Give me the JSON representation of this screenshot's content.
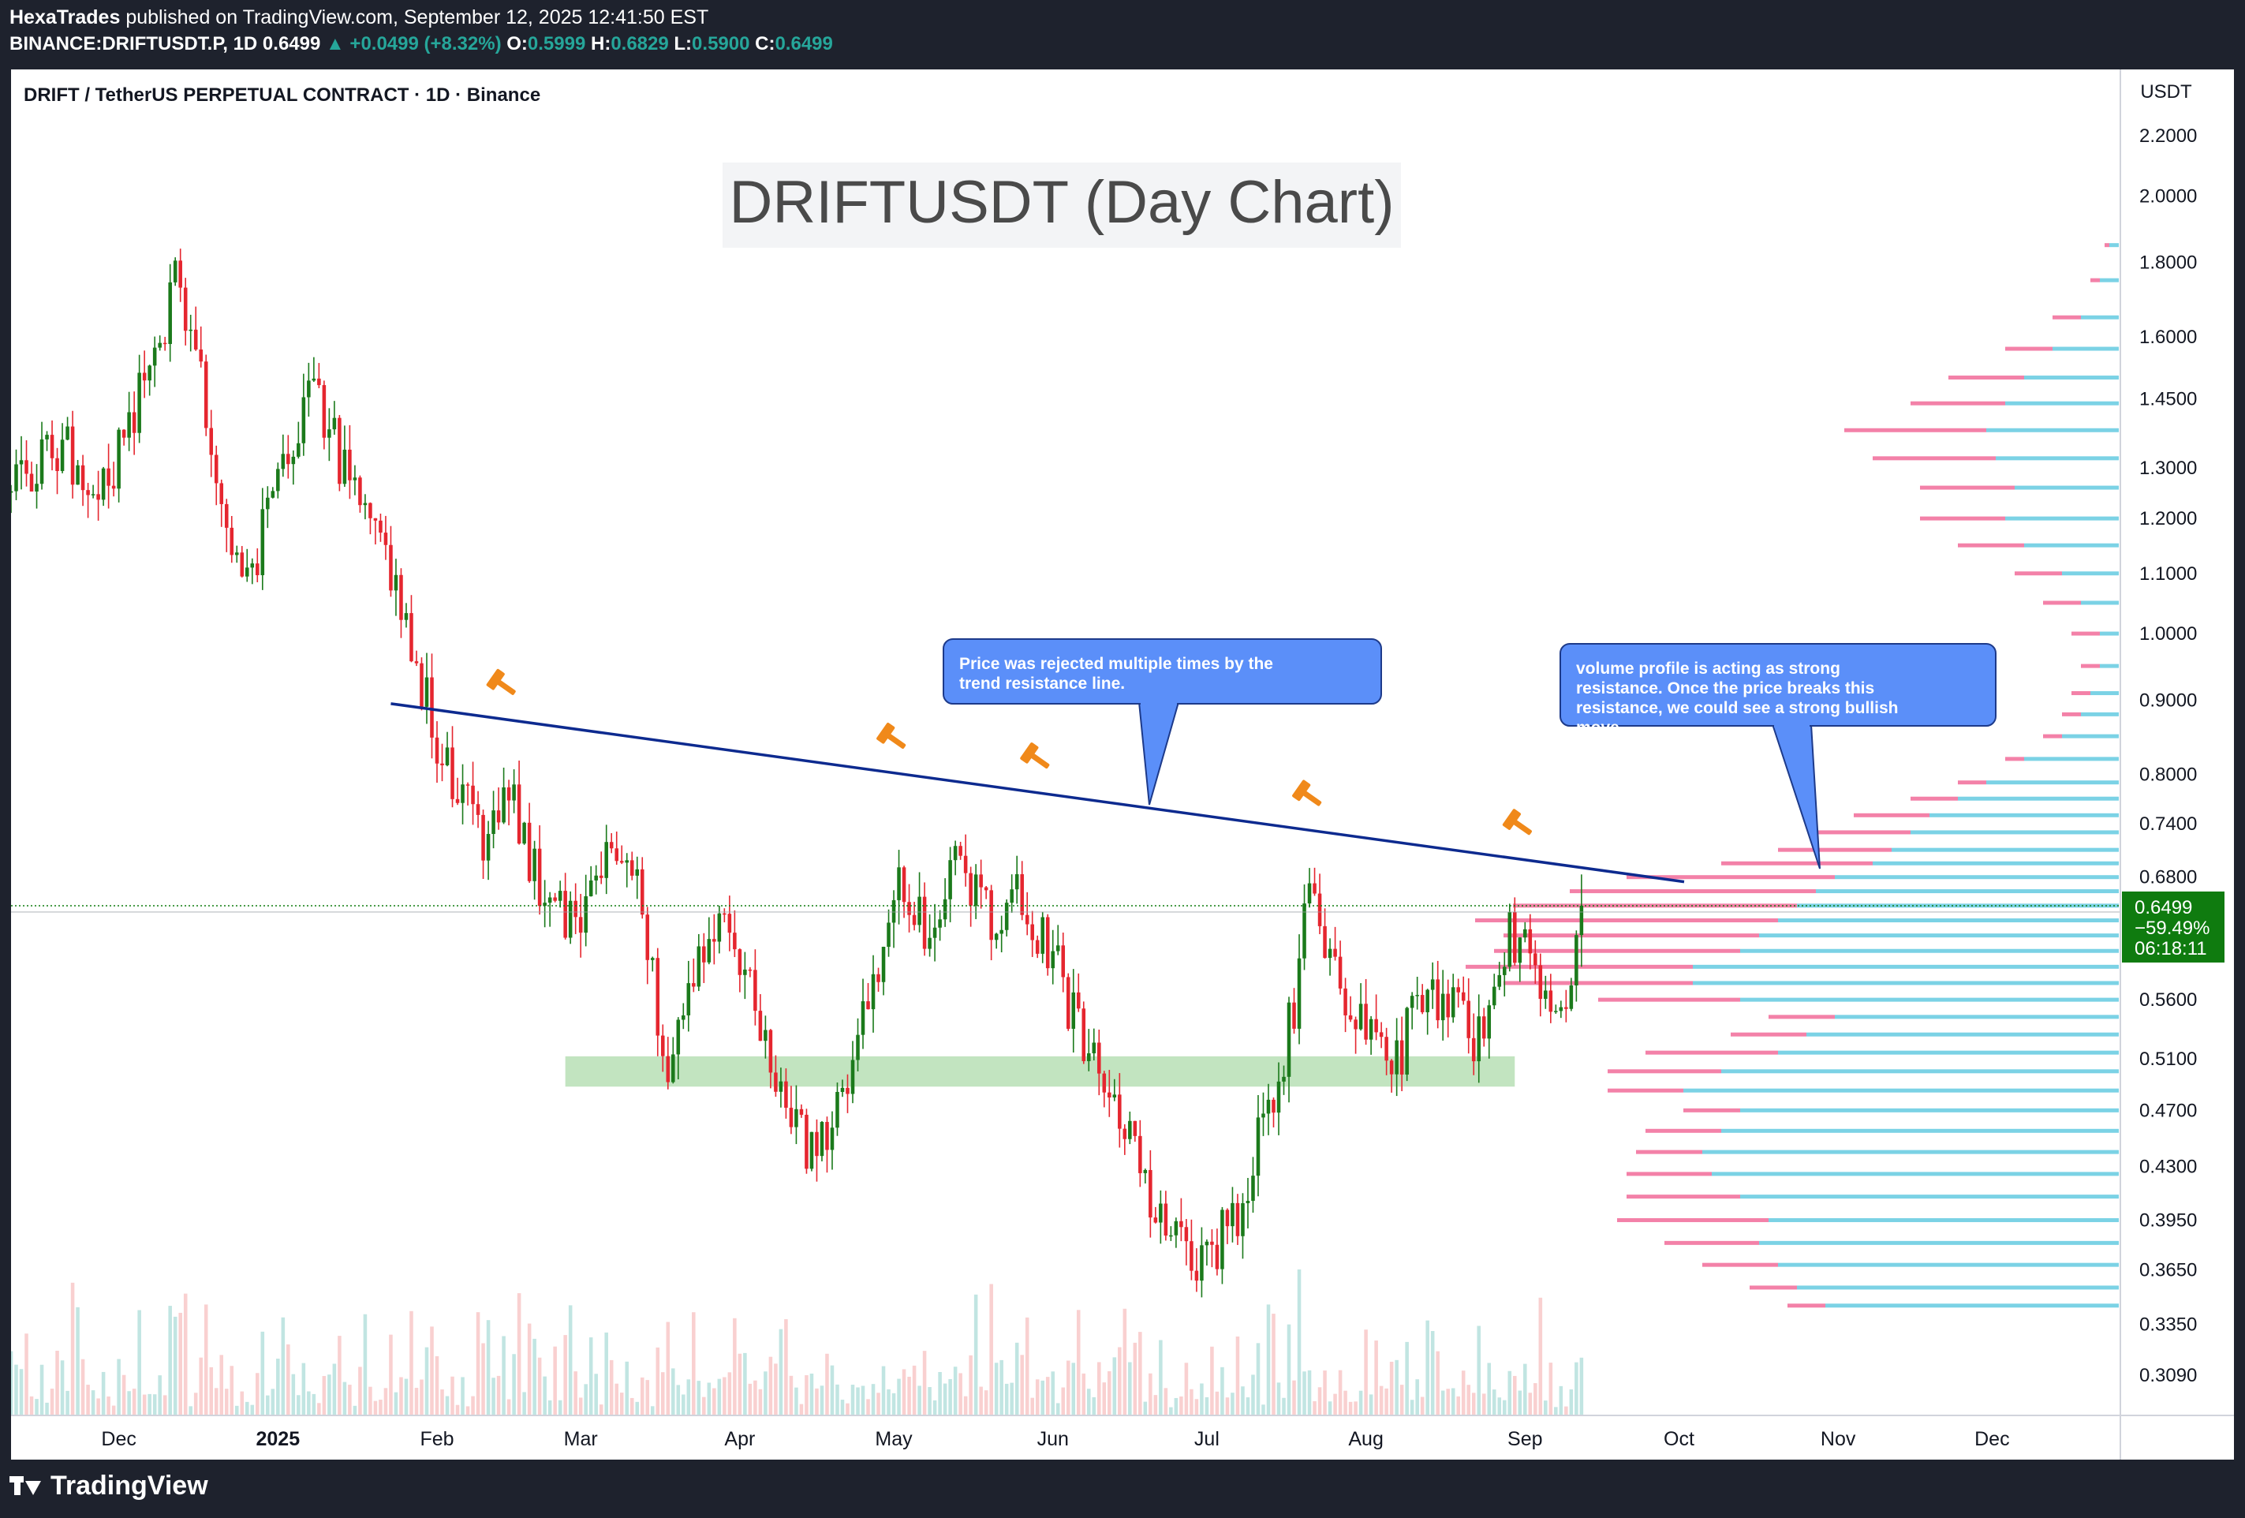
{
  "header": {
    "author": "HexaTrades",
    "published_text": "published on TradingView.com, September 12, 2025 12:41:50 EST",
    "symbol": "BINANCE:DRIFTUSDT.P, 1D",
    "last": "0.6499",
    "change": "▲ +0.0499 (+8.32%)",
    "o_label": "O:",
    "o": "0.5999",
    "h_label": "H:",
    "h": "0.6829",
    "l_label": "L:",
    "l": "0.5900",
    "c_label": "C:",
    "c": "0.6499"
  },
  "chart_title": "DRIFT / TetherUS PERPETUAL CONTRACT · 1D · Binance",
  "footer": {
    "brand": "TradingView"
  },
  "colors": {
    "up": "#1b7a1b",
    "down": "#e5262f",
    "trendline": "#0d2a8f",
    "callout": "#5b8ff9",
    "support_zone": "#b7dfb5",
    "vp_up": "#4fc3dc",
    "vp_down": "#f06292",
    "price_tag": "#0f7b0f"
  },
  "chart_data": {
    "type": "candlestick",
    "annotation_title": "DRIFTUSDT (Day Chart)",
    "y_axis": {
      "unit": "USDT",
      "scale": "log",
      "ticks": [
        "2.2000",
        "2.0000",
        "1.8000",
        "1.6000",
        "1.4500",
        "1.3000",
        "1.2000",
        "1.1000",
        "1.0000",
        "0.9000",
        "0.8000",
        "0.7400",
        "0.6800",
        "0.5600",
        "0.5100",
        "0.4700",
        "0.4300",
        "0.3950",
        "0.3650",
        "0.3350",
        "0.3090"
      ]
    },
    "x_axis": {
      "ticks": [
        "Dec",
        "2025",
        "Feb",
        "Mar",
        "Apr",
        "May",
        "Jun",
        "Jul",
        "Aug",
        "Sep",
        "Oct",
        "Nov",
        "Dec"
      ],
      "range": [
        "2024-11-10",
        "2025-12-26"
      ]
    },
    "price_tag": {
      "price": "0.6499",
      "change": "−59.49%",
      "countdown": "06:18:11"
    },
    "callouts": [
      "Price was rejected multiple times by the trend resistance line.",
      "volume profile is acting as strong resistance. Once the price breaks this resistance, we could see a strong bullish move."
    ],
    "trendline": {
      "start": [
        "2025-01-23",
        0.895
      ],
      "end": [
        "2025-10-02",
        0.675
      ]
    },
    "support_zone": {
      "start": "2025-02-26",
      "end": "2025-08-30",
      "low": 0.488,
      "high": 0.512
    },
    "rejection_markers": [
      "2025-02-13",
      "2025-04-30",
      "2025-05-28",
      "2025-07-20",
      "2025-08-30"
    ],
    "price_path": [
      [
        "2024-11-10",
        1.25
      ],
      [
        "2024-11-20",
        1.35
      ],
      [
        "2024-11-28",
        1.25
      ],
      [
        "2024-12-08",
        1.55
      ],
      [
        "2024-12-12",
        1.75
      ],
      [
        "2024-12-18",
        1.45
      ],
      [
        "2024-12-25",
        1.05
      ],
      [
        "2025-01-02",
        1.3
      ],
      [
        "2025-01-08",
        1.5
      ],
      [
        "2025-01-15",
        1.25
      ],
      [
        "2025-01-22",
        1.15
      ],
      [
        "2025-01-28",
        0.95
      ],
      [
        "2025-02-03",
        0.8
      ],
      [
        "2025-02-10",
        0.72
      ],
      [
        "2025-02-15",
        0.78
      ],
      [
        "2025-02-22",
        0.65
      ],
      [
        "2025-03-01",
        0.63
      ],
      [
        "2025-03-06",
        0.7
      ],
      [
        "2025-03-12",
        0.68
      ],
      [
        "2025-03-18",
        0.5
      ],
      [
        "2025-03-24",
        0.62
      ],
      [
        "2025-03-30",
        0.62
      ],
      [
        "2025-04-03",
        0.58
      ],
      [
        "2025-04-08",
        0.5
      ],
      [
        "2025-04-14",
        0.44
      ],
      [
        "2025-04-20",
        0.47
      ],
      [
        "2025-04-26",
        0.55
      ],
      [
        "2025-05-02",
        0.68
      ],
      [
        "2025-05-08",
        0.62
      ],
      [
        "2025-05-14",
        0.7
      ],
      [
        "2025-05-20",
        0.63
      ],
      [
        "2025-05-26",
        0.66
      ],
      [
        "2025-06-01",
        0.6
      ],
      [
        "2025-06-07",
        0.52
      ],
      [
        "2025-06-13",
        0.47
      ],
      [
        "2025-06-19",
        0.42
      ],
      [
        "2025-06-25",
        0.38
      ],
      [
        "2025-07-01",
        0.37
      ],
      [
        "2025-07-07",
        0.4
      ],
      [
        "2025-07-12",
        0.46
      ],
      [
        "2025-07-18",
        0.55
      ],
      [
        "2025-07-21",
        0.7
      ],
      [
        "2025-07-26",
        0.58
      ],
      [
        "2025-08-01",
        0.53
      ],
      [
        "2025-08-06",
        0.5
      ],
      [
        "2025-08-12",
        0.56
      ],
      [
        "2025-08-18",
        0.55
      ],
      [
        "2025-08-24",
        0.52
      ],
      [
        "2025-08-29",
        0.62
      ],
      [
        "2025-09-02",
        0.6
      ],
      [
        "2025-09-06",
        0.54
      ],
      [
        "2025-09-10",
        0.58
      ],
      [
        "2025-09-12",
        0.6499
      ]
    ],
    "volume_profile": {
      "range": [
        0.345,
        2.0
      ],
      "bins": [
        [
          0.345,
          0.31,
          0.04
        ],
        [
          0.355,
          0.34,
          0.05
        ],
        [
          0.368,
          0.36,
          0.08
        ],
        [
          0.381,
          0.38,
          0.1
        ],
        [
          0.395,
          0.37,
          0.16
        ],
        [
          0.41,
          0.4,
          0.12
        ],
        [
          0.425,
          0.43,
          0.09
        ],
        [
          0.44,
          0.44,
          0.07
        ],
        [
          0.455,
          0.42,
          0.08
        ],
        [
          0.47,
          0.4,
          0.06
        ],
        [
          0.485,
          0.46,
          0.08
        ],
        [
          0.5,
          0.42,
          0.12
        ],
        [
          0.515,
          0.36,
          0.14
        ],
        [
          0.53,
          0.33,
          0.08
        ],
        [
          0.545,
          0.3,
          0.07
        ],
        [
          0.56,
          0.4,
          0.15
        ],
        [
          0.575,
          0.45,
          0.2
        ],
        [
          0.59,
          0.45,
          0.24
        ],
        [
          0.605,
          0.4,
          0.26
        ],
        [
          0.62,
          0.38,
          0.27
        ],
        [
          0.635,
          0.36,
          0.32
        ],
        [
          0.65,
          0.34,
          0.3
        ],
        [
          0.665,
          0.32,
          0.26
        ],
        [
          0.68,
          0.3,
          0.22
        ],
        [
          0.695,
          0.26,
          0.16
        ],
        [
          0.71,
          0.24,
          0.12
        ],
        [
          0.73,
          0.22,
          0.1
        ],
        [
          0.75,
          0.2,
          0.08
        ],
        [
          0.77,
          0.17,
          0.05
        ],
        [
          0.79,
          0.14,
          0.03
        ],
        [
          0.82,
          0.1,
          0.02
        ],
        [
          0.85,
          0.06,
          0.02
        ],
        [
          0.88,
          0.04,
          0.02
        ],
        [
          0.91,
          0.03,
          0.02
        ],
        [
          0.95,
          0.02,
          0.02
        ],
        [
          1.0,
          0.02,
          0.03
        ],
        [
          1.05,
          0.04,
          0.04
        ],
        [
          1.1,
          0.06,
          0.05
        ],
        [
          1.15,
          0.1,
          0.07
        ],
        [
          1.2,
          0.12,
          0.09
        ],
        [
          1.26,
          0.11,
          0.1
        ],
        [
          1.32,
          0.13,
          0.13
        ],
        [
          1.38,
          0.14,
          0.15
        ],
        [
          1.44,
          0.12,
          0.1
        ],
        [
          1.5,
          0.1,
          0.08
        ],
        [
          1.57,
          0.07,
          0.05
        ],
        [
          1.65,
          0.04,
          0.03
        ],
        [
          1.75,
          0.02,
          0.01
        ],
        [
          1.85,
          0.01,
          0.005
        ]
      ]
    }
  }
}
